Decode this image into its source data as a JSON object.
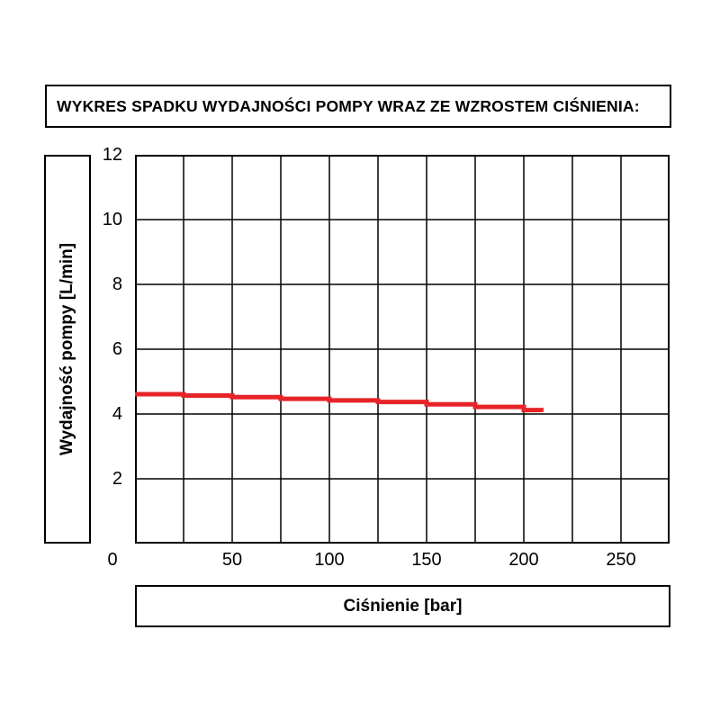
{
  "page": {
    "background": "#ffffff"
  },
  "header": {
    "title": "WYKRES SPADKU WYDAJNOŚCI POMPY WRAZ ZE WZROSTEM CIŚNIENIA:"
  },
  "axes": {
    "x_label": "Ciśnienie [bar]",
    "y_label": "Wydajność pompy [L/min]"
  },
  "chart_data": {
    "type": "line",
    "title": "WYKRES SPADKU WYDAJNOŚCI POMPY WRAZ ZE WZROSTEM CIŚNIENIA:",
    "xlabel": "Ciśnienie [bar]",
    "ylabel": "Wydajność pompy [L/min]",
    "xlim": [
      0,
      275
    ],
    "ylim": [
      0,
      12
    ],
    "x_axis_tick_values": [
      0,
      50,
      100,
      150,
      200,
      250
    ],
    "y_axis_tick_values": [
      2,
      4,
      6,
      8,
      10,
      12
    ],
    "origin_tick_label": "0",
    "x_grid_step": 25,
    "y_grid_step": 2,
    "grid": true,
    "legend": "none",
    "line_color": "#e62428",
    "grid_color": "#000000",
    "series": [
      {
        "name": "Wydajność pompy [L/min]",
        "points": [
          [
            0,
            4.61
          ],
          [
            25,
            4.57
          ],
          [
            50,
            4.52
          ],
          [
            75,
            4.47
          ],
          [
            100,
            4.42
          ],
          [
            125,
            4.37
          ],
          [
            150,
            4.3
          ],
          [
            175,
            4.22
          ],
          [
            200,
            4.12
          ],
          [
            209,
            4.06
          ]
        ]
      }
    ]
  }
}
